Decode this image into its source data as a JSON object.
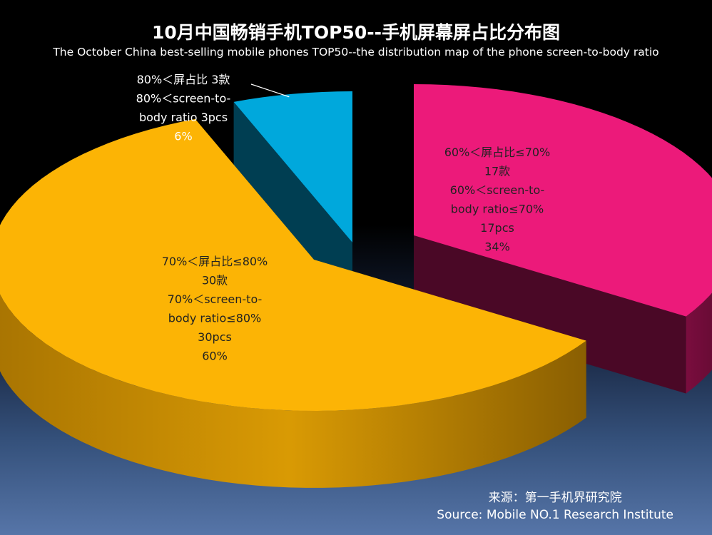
{
  "title": "10月中国畅销手机TOP50--手机屏幕屏占比分布图",
  "subtitle": "The October China best-selling mobile phones TOP50--the distribution map of the phone screen-to-body ratio",
  "source": {
    "cn": "来源：第一手机界研究院",
    "en": "Source: Mobile NO.1 Research Institute"
  },
  "chart_data": {
    "type": "pie",
    "exploded": true,
    "three_d": true,
    "slices": [
      {
        "name": "60%＜屏占比≤70%",
        "value": 17,
        "percent": 34,
        "color": "#ec1a7a",
        "label_lines": [
          "60%＜屏占比≤70%",
          "17款",
          "60%＜screen-to-",
          "body ratio≤70%",
          "17pcs",
          "34%"
        ]
      },
      {
        "name": "70%＜屏占比≤80%",
        "value": 30,
        "percent": 60,
        "color": "#fcb405",
        "label_lines": [
          "70%＜屏占比≤80%",
          "30款",
          "70%＜screen-to-",
          "body ratio≤80%",
          "30pcs",
          "60%"
        ]
      },
      {
        "name": "80%＜屏占比",
        "value": 3,
        "percent": 6,
        "color": "#00a8dc",
        "label_lines": [
          "80%＜屏占比  3款",
          "80%＜screen-to-",
          "body ratio  3pcs",
          "6%"
        ]
      }
    ]
  }
}
